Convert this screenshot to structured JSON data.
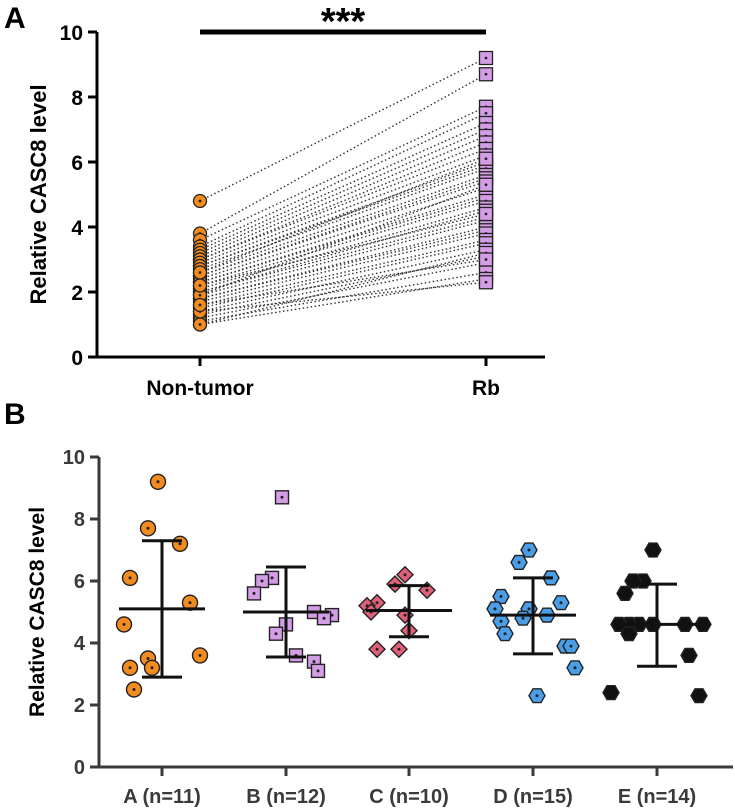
{
  "chart_data": [
    {
      "panel": "A",
      "type": "scatter",
      "subtype": "paired-before-after",
      "categories": [
        "Non-tumor",
        "Rb"
      ],
      "ylabel": "Relative CASC8 level",
      "ylim": [
        0,
        10
      ],
      "yticks": [
        0,
        2,
        4,
        6,
        8,
        10
      ],
      "significance": "***",
      "colors": {
        "Non-tumor": "#f28b20",
        "Rb": "#d49ee6",
        "lines": "#333333"
      },
      "pairs": [
        [
          4.8,
          9.2
        ],
        [
          3.8,
          8.7
        ],
        [
          3.6,
          7.7
        ],
        [
          3.4,
          7.5
        ],
        [
          3.3,
          7.2
        ],
        [
          3.2,
          7.0
        ],
        [
          3.1,
          6.8
        ],
        [
          3.0,
          6.6
        ],
        [
          3.0,
          6.4
        ],
        [
          2.9,
          6.2
        ],
        [
          2.8,
          6.0
        ],
        [
          2.8,
          5.9
        ],
        [
          2.7,
          5.8
        ],
        [
          2.6,
          5.6
        ],
        [
          2.5,
          5.5
        ],
        [
          2.5,
          5.4
        ],
        [
          2.4,
          5.2
        ],
        [
          2.3,
          5.0
        ],
        [
          2.3,
          4.9
        ],
        [
          2.2,
          4.8
        ],
        [
          2.1,
          4.6
        ],
        [
          2.0,
          4.5
        ],
        [
          2.0,
          4.3
        ],
        [
          1.9,
          4.2
        ],
        [
          1.8,
          4.0
        ],
        [
          1.8,
          3.9
        ],
        [
          1.7,
          3.8
        ],
        [
          1.6,
          3.6
        ],
        [
          1.5,
          3.5
        ],
        [
          1.4,
          3.3
        ],
        [
          1.3,
          3.1
        ],
        [
          1.2,
          2.9
        ],
        [
          1.1,
          2.6
        ],
        [
          1.0,
          2.4
        ],
        [
          1.4,
          2.3
        ],
        [
          1.0,
          3.2
        ],
        [
          1.9,
          5.3
        ],
        [
          2.6,
          6.1
        ],
        [
          2.2,
          4.4
        ],
        [
          1.6,
          3.0
        ]
      ]
    },
    {
      "panel": "B",
      "type": "scatter",
      "subtype": "dot-plot-mean-sd",
      "ylabel": "Relative CASC8 level",
      "ylim": [
        0,
        10
      ],
      "yticks": [
        0,
        2,
        4,
        6,
        8,
        10
      ],
      "groups": [
        {
          "label": "A (n=11)",
          "marker": "circle",
          "color": "#f28b20",
          "mean": 5.1,
          "sd_low": 2.9,
          "sd_high": 7.3,
          "values": [
            9.2,
            7.7,
            7.2,
            6.1,
            5.3,
            4.6,
            3.6,
            3.5,
            3.2,
            3.2,
            2.5
          ]
        },
        {
          "label": "B (n=12)",
          "marker": "square",
          "color": "#d49ee6",
          "mean": 5.0,
          "sd_low": 3.55,
          "sd_high": 6.45,
          "values": [
            8.7,
            6.1,
            6.0,
            5.6,
            5.0,
            4.9,
            4.8,
            4.6,
            4.3,
            3.6,
            3.4,
            3.1
          ]
        },
        {
          "label": "C (n=10)",
          "marker": "diamond",
          "color": "#e0607a",
          "mean": 5.05,
          "sd_low": 4.2,
          "sd_high": 5.85,
          "values": [
            6.2,
            5.9,
            5.7,
            5.3,
            5.2,
            5.0,
            4.9,
            4.4,
            3.8,
            3.8
          ]
        },
        {
          "label": "D (n=15)",
          "marker": "hexagon",
          "color": "#4a9ee8",
          "mean": 4.9,
          "sd_low": 3.65,
          "sd_high": 6.1,
          "values": [
            7.0,
            6.6,
            6.1,
            5.5,
            5.3,
            5.1,
            5.1,
            4.9,
            4.8,
            4.7,
            4.3,
            3.9,
            3.9,
            3.2,
            2.3
          ]
        },
        {
          "label": "E (n=14)",
          "marker": "hexagon",
          "color": "#111111",
          "mean": 4.6,
          "sd_low": 3.25,
          "sd_high": 5.9,
          "values": [
            7.0,
            6.0,
            6.0,
            5.6,
            4.6,
            4.6,
            4.6,
            4.6,
            4.6,
            4.6,
            4.3,
            3.6,
            2.4,
            2.3
          ]
        }
      ]
    }
  ]
}
